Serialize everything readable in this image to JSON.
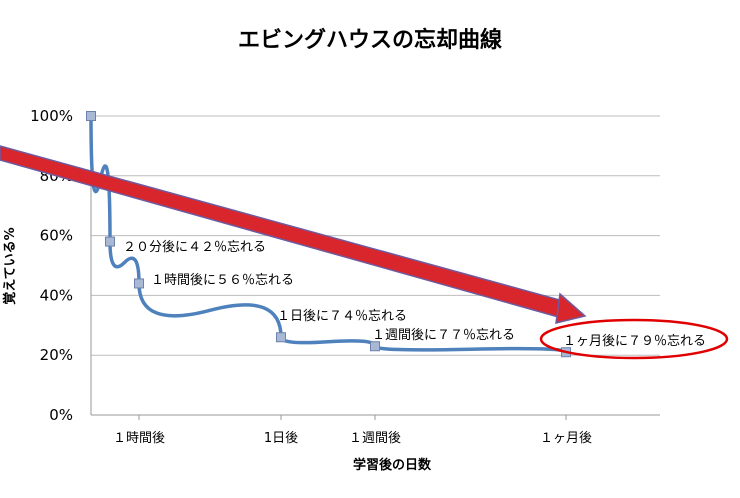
{
  "chart_data": {
    "type": "line",
    "title": "エビングハウスの忘却曲線",
    "xlabel": "学習後の日数",
    "ylabel": "覚えている%",
    "ylim": [
      0,
      100
    ],
    "y_ticks": [
      "0%",
      "20%",
      "40%",
      "60%",
      "80%",
      "100%"
    ],
    "x_ticks": [
      "１時間後",
      "1日後",
      "１週間後",
      "１ヶ月後"
    ],
    "grid": true,
    "series": [
      {
        "color": "#4f81bd",
        "points": [
          {
            "x": "0",
            "y": 100
          },
          {
            "x": "20分後",
            "y": 58
          },
          {
            "x": "１時間後",
            "y": 44
          },
          {
            "x": "1日後",
            "y": 26
          },
          {
            "x": "１週間後",
            "y": 23
          },
          {
            "x": "１ヶ月後",
            "y": 21
          }
        ]
      }
    ],
    "annotations": [
      {
        "text": "２０分後に４２％忘れる",
        "point": 1
      },
      {
        "text": "１時間後に５６％忘れる",
        "point": 2
      },
      {
        "text": "１日後に７４％忘れる",
        "point": 3
      },
      {
        "text": "１週間後に７７％忘れる",
        "point": 4
      },
      {
        "text": "１ヶ月後に７９％忘れる",
        "point": 5,
        "highlight": true
      }
    ],
    "arrow_color": "#d9262c",
    "highlight_color": "#e00000"
  }
}
